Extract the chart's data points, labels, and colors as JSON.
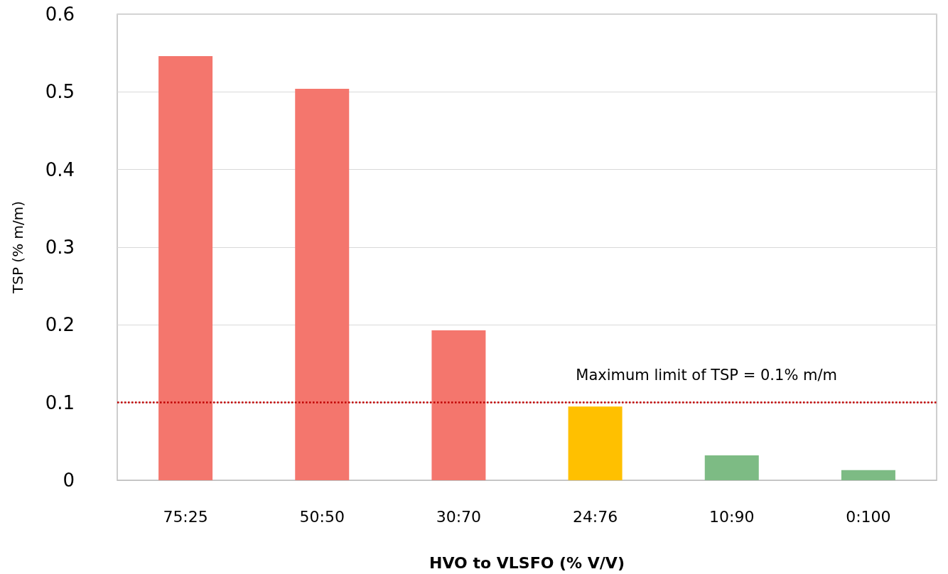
{
  "chart_data": {
    "type": "bar",
    "xlabel": "HVO to VLSFO (% V/V)",
    "ylabel": "TSP (% m/m)",
    "categories": [
      "75:25",
      "50:50",
      "30:70",
      "24:76",
      "10:90",
      "0:100"
    ],
    "values": [
      0.546,
      0.504,
      0.193,
      0.095,
      0.032,
      0.013
    ],
    "colors": [
      "#f4766d",
      "#f4766d",
      "#f4766d",
      "#ffc000",
      "#7dbb84",
      "#7dbb84"
    ],
    "ylim": [
      0,
      0.6
    ],
    "yticks": [
      0,
      0.1,
      0.2,
      0.3,
      0.4,
      0.5,
      0.6
    ],
    "grid": "y",
    "ref_lines": [
      {
        "axis": "y",
        "value": 0.1,
        "label": "Maximum limit of TSP = 0.1% m/m",
        "color": "#c00000",
        "line_style": "dotted"
      }
    ]
  }
}
